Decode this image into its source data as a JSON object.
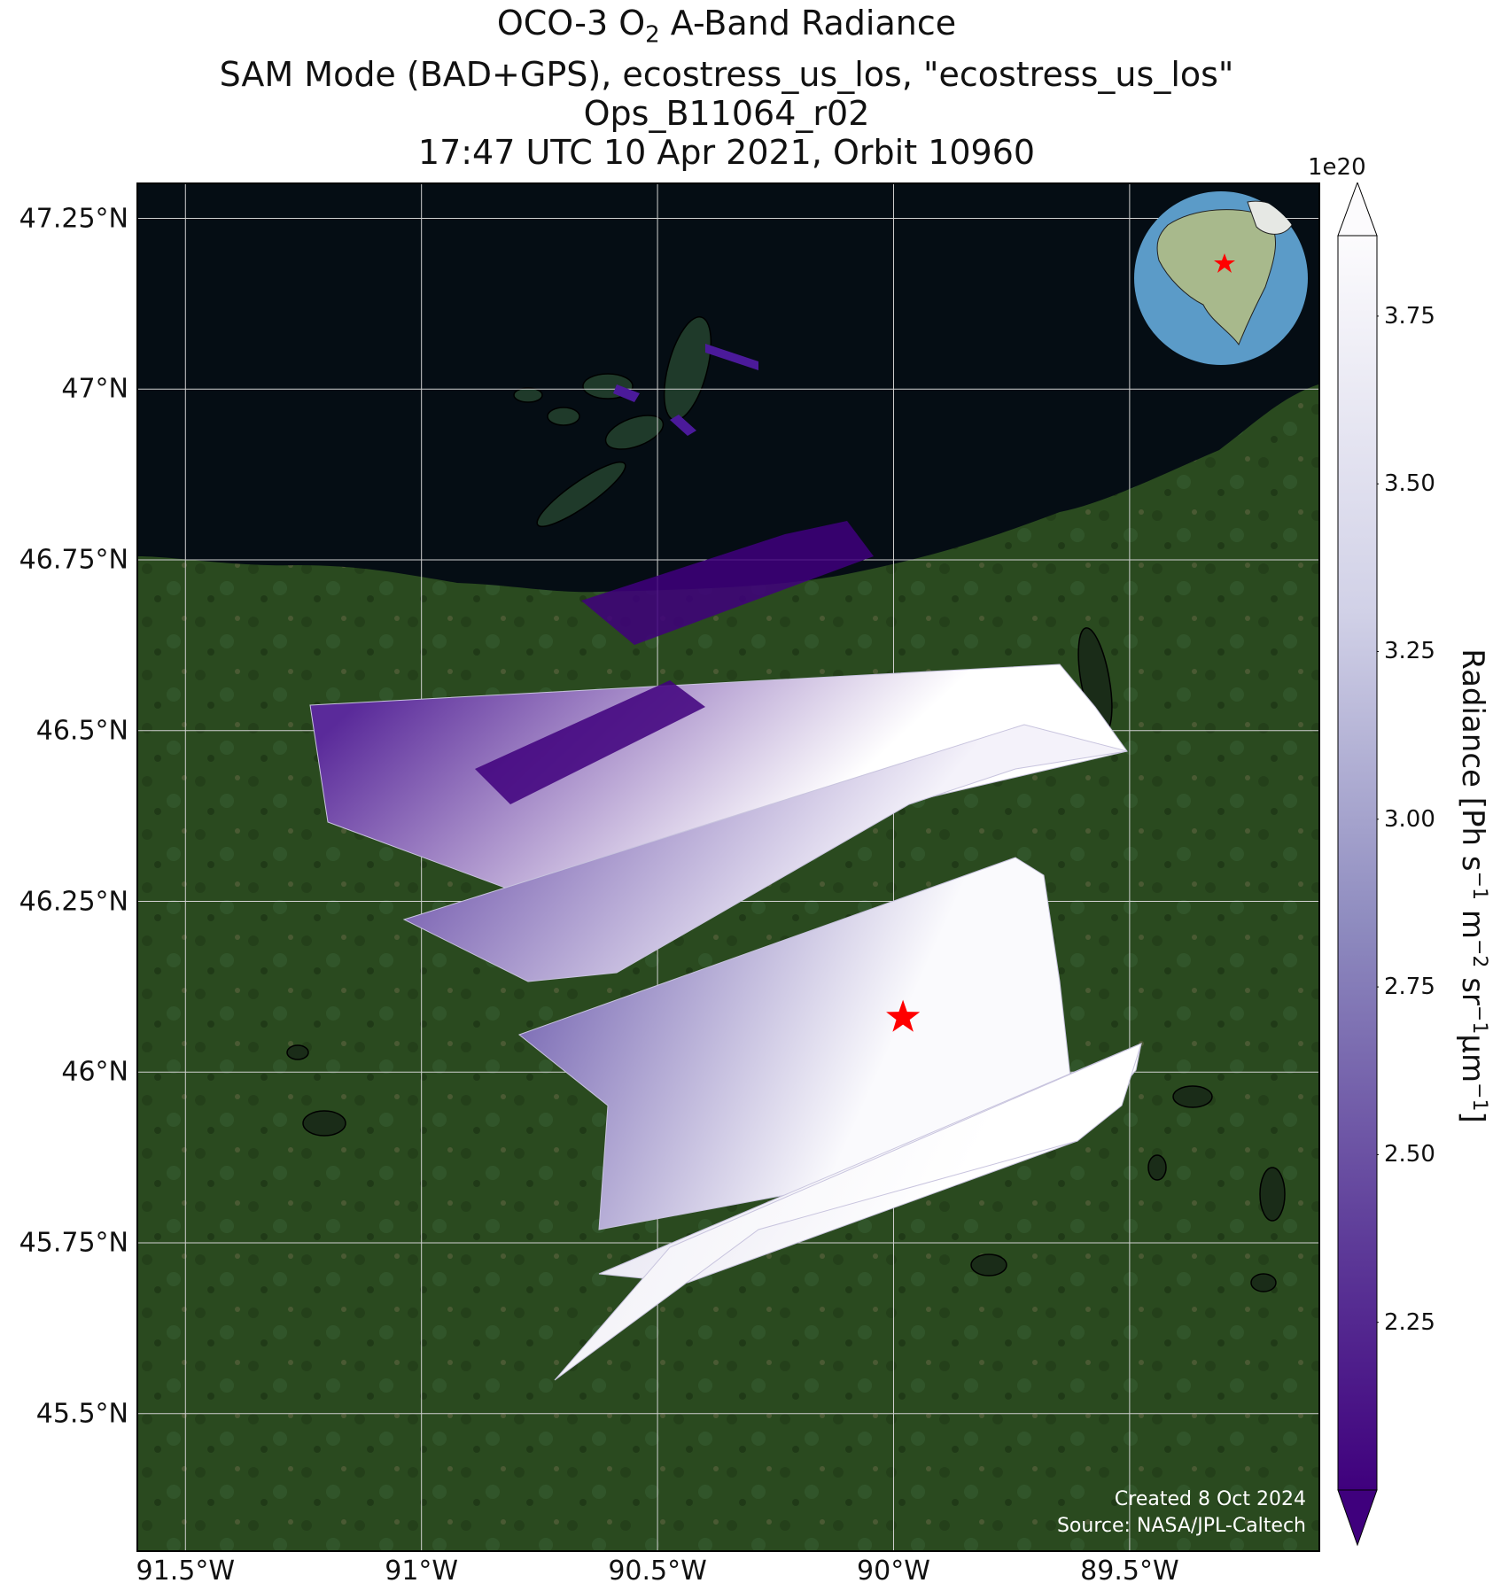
{
  "title": {
    "line1_pre": "OCO-3 O",
    "line1_sub": "2",
    "line1_post": " A-Band Radiance",
    "line2": "SAM Mode (BAD+GPS), ecostress_us_los, \"ecostress_us_los\"",
    "line3": "Ops_B11064_r02",
    "line4": "17:47 UTC 10 Apr 2021, Orbit 10960"
  },
  "map": {
    "lat_ticks": [
      "47.25°N",
      "47°N",
      "46.75°N",
      "46.5°N",
      "46.25°N",
      "46°N",
      "45.75°N",
      "45.5°N"
    ],
    "lat_values": [
      47.25,
      47.0,
      46.75,
      46.5,
      46.25,
      46.0,
      45.75,
      45.5
    ],
    "lon_ticks": [
      "91.5°W",
      "91°W",
      "90.5°W",
      "90°W",
      "89.5°W"
    ],
    "lon_values": [
      -91.5,
      -91.0,
      -90.5,
      -90.0,
      -89.5
    ],
    "extent": {
      "lon_min": -91.6,
      "lon_max": -89.1,
      "lat_min": 45.3,
      "lat_max": 47.3
    },
    "target_site": {
      "lon": -89.98,
      "lat": 46.08,
      "symbol": "red-star"
    },
    "colors": {
      "land": "#2a4a1f",
      "water": "#050d14",
      "target": "#ff0000",
      "gridline": "#d0d0d0"
    }
  },
  "colorbar": {
    "multiplier": "1e20",
    "label_pre": "Radiance [Ph s",
    "label_sup1": "−1",
    "label_mid1": " m",
    "label_sup2": "−2",
    "label_mid2": " sr",
    "label_sup3": "−1",
    "label_mid3": "μm",
    "label_sup4": "−1",
    "label_post": "]",
    "ticks": [
      "2.25",
      "2.50",
      "2.75",
      "3.00",
      "3.25",
      "3.50",
      "3.75"
    ],
    "tick_values": [
      2.25,
      2.5,
      2.75,
      3.0,
      3.25,
      3.5,
      3.75
    ],
    "vmin": 2.0,
    "vmax": 3.87,
    "extend": "both",
    "colormap": "Purples_r",
    "color_low": "#3f007d",
    "color_high": "#fcfbfd"
  },
  "credits": {
    "line1": "Created 8 Oct 2024",
    "line2": "Source: NASA/JPL-Caltech"
  },
  "inset_globe": {
    "marker": "red-star"
  }
}
